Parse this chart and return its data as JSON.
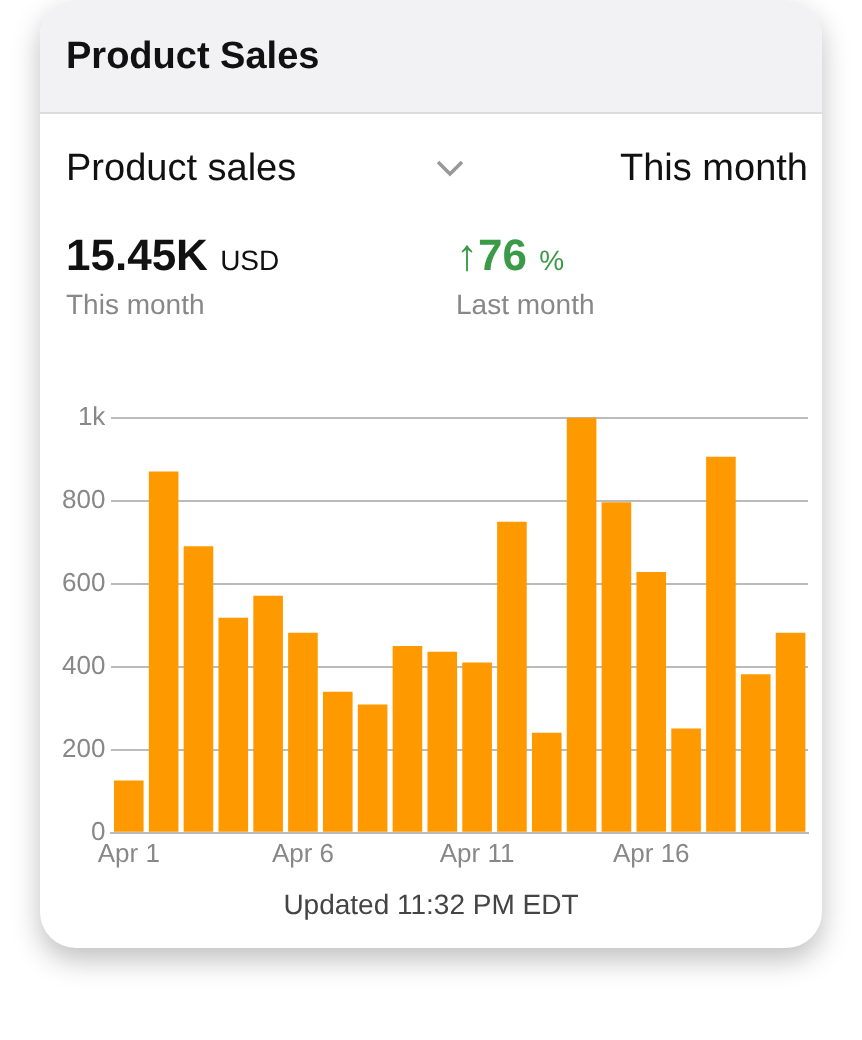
{
  "chart_data": {
    "type": "bar",
    "title": "Product Sales",
    "categories": [
      "Apr 1",
      null,
      null,
      null,
      null,
      "Apr 6",
      null,
      null,
      null,
      null,
      "Apr 11",
      null,
      null,
      null,
      null,
      "Apr 16",
      null,
      null,
      null,
      null
    ],
    "values": [
      126,
      870,
      690,
      518,
      571,
      482,
      340,
      309,
      450,
      436,
      410,
      749,
      241,
      1000,
      796,
      628,
      251,
      906,
      382,
      482
    ],
    "color": "#ff9900",
    "ylim": [
      0,
      1000
    ],
    "yticks": [
      0,
      200,
      400,
      600,
      800,
      {
        "value": 1000,
        "label": "1k"
      }
    ],
    "grid": "y",
    "legend": false,
    "annotations": [
      "Product sales",
      "This month",
      "15.45K USD",
      "This month",
      "↑76 %",
      "Last month",
      "Updated 11:32 PM EDT"
    ]
  }
}
